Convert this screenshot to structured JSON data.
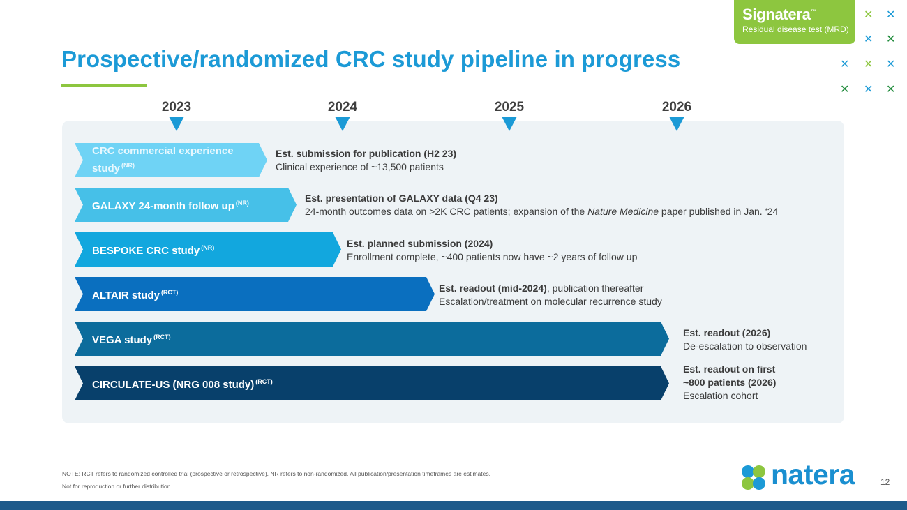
{
  "slide": {
    "title": "Prospective/randomized CRC study pipeline in progress",
    "page_number": "12"
  },
  "brand": {
    "name": "Signatera",
    "tm": "™",
    "subtitle": "Residual disease test (MRD)",
    "logo_text": "natera",
    "colors": {
      "green": "#8dc63f",
      "blue": "#1c9ad6",
      "navy": "#1e5a8a"
    }
  },
  "timeline": {
    "years": [
      "2023",
      "2024",
      "2025",
      "2026"
    ]
  },
  "studies": [
    {
      "label": "CRC commercial experience study",
      "tag": "(NR)",
      "color": "#6fd3f5",
      "text_color": "#e8f8fe",
      "line1_bold": "Est. submission for publication (H2 23)",
      "line2": "Clinical experience of ~13,500 patients"
    },
    {
      "label": "GALAXY 24-month follow up",
      "tag": "(NR)",
      "color": "#46c0e8",
      "text_color": "#ffffff",
      "line1_bold": "Est. presentation of GALAXY data (Q4 23)",
      "line2_pre": "24-month outcomes data on >2K CRC patients; expansion of the ",
      "line2_italic": "Nature Medicine",
      "line2_post": " paper published in Jan. ‘24"
    },
    {
      "label": "BESPOKE CRC study",
      "tag": "(NR)",
      "color": "#12a7de",
      "text_color": "#ffffff",
      "line1_bold": "Est. planned submission (2024)",
      "line2": "Enrollment complete, ~400 patients now have ~2 years of follow up"
    },
    {
      "label": "ALTAIR study",
      "tag": "(RCT)",
      "color": "#0a6fbf",
      "text_color": "#ffffff",
      "line1_bold": "Est. readout (mid-2024)",
      "line1_rest": ", publication thereafter",
      "line2": "Escalation/treatment on molecular recurrence study"
    },
    {
      "label": "VEGA study",
      "tag": "(RCT)",
      "color": "#0c6c9c",
      "text_color": "#ffffff",
      "line1_bold": "Est. readout (2026)",
      "line2": "De-escalation to observation"
    },
    {
      "label": "CIRCULATE-US (NRG 008 study)",
      "tag": "(RCT)",
      "color": "#08406b",
      "text_color": "#ffffff",
      "line1_bold": "Est. readout on first",
      "line1b_bold": "~800 patients (2026)",
      "line2": "Escalation cohort"
    }
  ],
  "notes": {
    "line1": "NOTE: RCT refers to randomized controlled trial (prospective or retrospective). NR refers to non-randomized. All publication/presentation timeframes are estimates.",
    "line2": "Not for reproduction or further distribution."
  }
}
